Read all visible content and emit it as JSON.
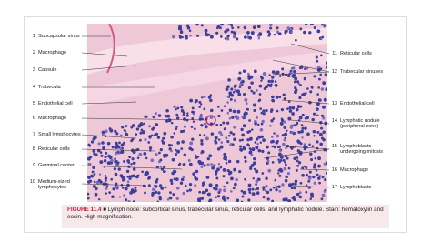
{
  "left_labels": [
    {
      "number": "1",
      "text": "Subcapsular sinus"
    },
    {
      "number": "2",
      "text": "Macrophage"
    },
    {
      "number": "3",
      "text": "Capsule"
    },
    {
      "number": "4",
      "text": "Trabecula"
    },
    {
      "number": "5",
      "text": "Endothelial cell"
    },
    {
      "number": "6",
      "text": "Macrophage"
    },
    {
      "number": "7",
      "text": "Small lymphocytes"
    },
    {
      "number": "8",
      "text": "Reticular cells"
    },
    {
      "number": "9",
      "text": "Germinal center"
    },
    {
      "number": "10",
      "text": "Medium-sized lymphocytes"
    }
  ],
  "right_labels": [
    {
      "number": "11",
      "text": "Reticular cells"
    },
    {
      "number": "12",
      "text": "Trabecular sinuses"
    },
    {
      "number": "13",
      "text": "Endothelial cell"
    },
    {
      "number": "14",
      "text": "Lymphatic nodule (peripheral zone)"
    },
    {
      "number": "15",
      "text": "Lymphoblasts undergoing mitosis"
    },
    {
      "number": "16",
      "text": "Macrophage"
    },
    {
      "number": "17",
      "text": "Lymphoblasts"
    }
  ],
  "caption": {
    "figure": "FIGURE 11.4",
    "text": "■ Lymph node: subcortical sinus, trabecular sinus, reticular cells, and lymphatic nodule. Stain: hematoxylin and eosin. High magnification."
  }
}
